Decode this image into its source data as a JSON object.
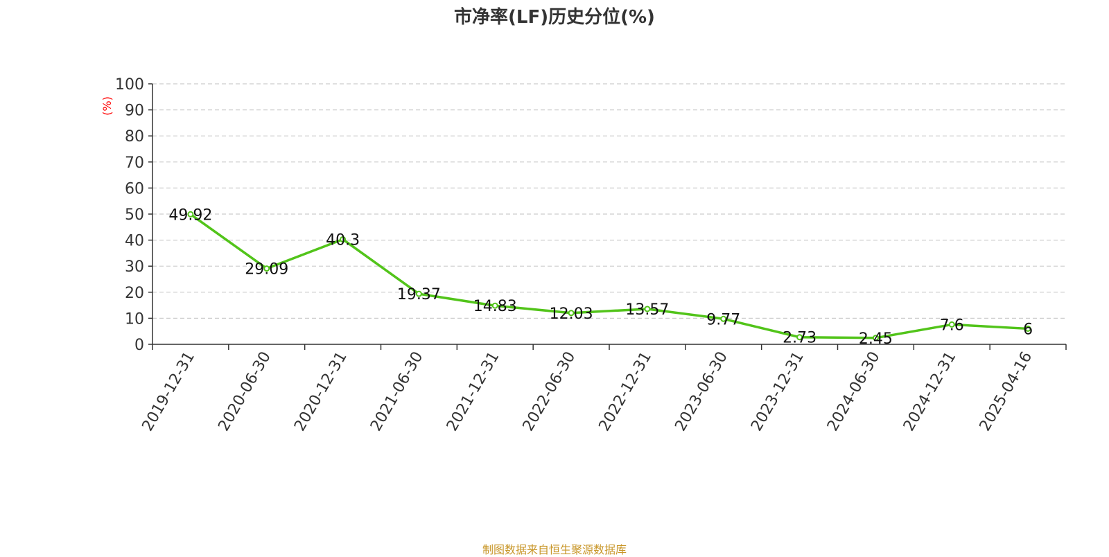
{
  "chart_data": {
    "type": "line",
    "title": "市净率(LF)历史分位(%)",
    "ylabel": "(%)",
    "xlabel": "",
    "ylim": [
      0,
      100
    ],
    "yticks": [
      0,
      10,
      20,
      30,
      40,
      50,
      60,
      70,
      80,
      90,
      100
    ],
    "grid": true,
    "categories": [
      "2019-12-31",
      "2020-06-30",
      "2020-12-31",
      "2021-06-30",
      "2021-12-31",
      "2022-06-30",
      "2022-12-31",
      "2023-06-30",
      "2023-12-31",
      "2024-06-30",
      "2024-12-31",
      "2025-04-16"
    ],
    "series": [
      {
        "values": [
          49.92,
          29.09,
          40.3,
          19.37,
          14.83,
          12.03,
          13.57,
          9.77,
          2.73,
          2.45,
          7.6,
          6
        ],
        "labels": [
          "49.92",
          "29.09",
          "40.3",
          "19.37",
          "14.83",
          "12.03",
          "13.57",
          "9.77",
          "2.73",
          "2.45",
          "7.6",
          "6"
        ],
        "color": "#52c41a"
      }
    ],
    "source": "制图数据来自恒生聚源数据库"
  }
}
